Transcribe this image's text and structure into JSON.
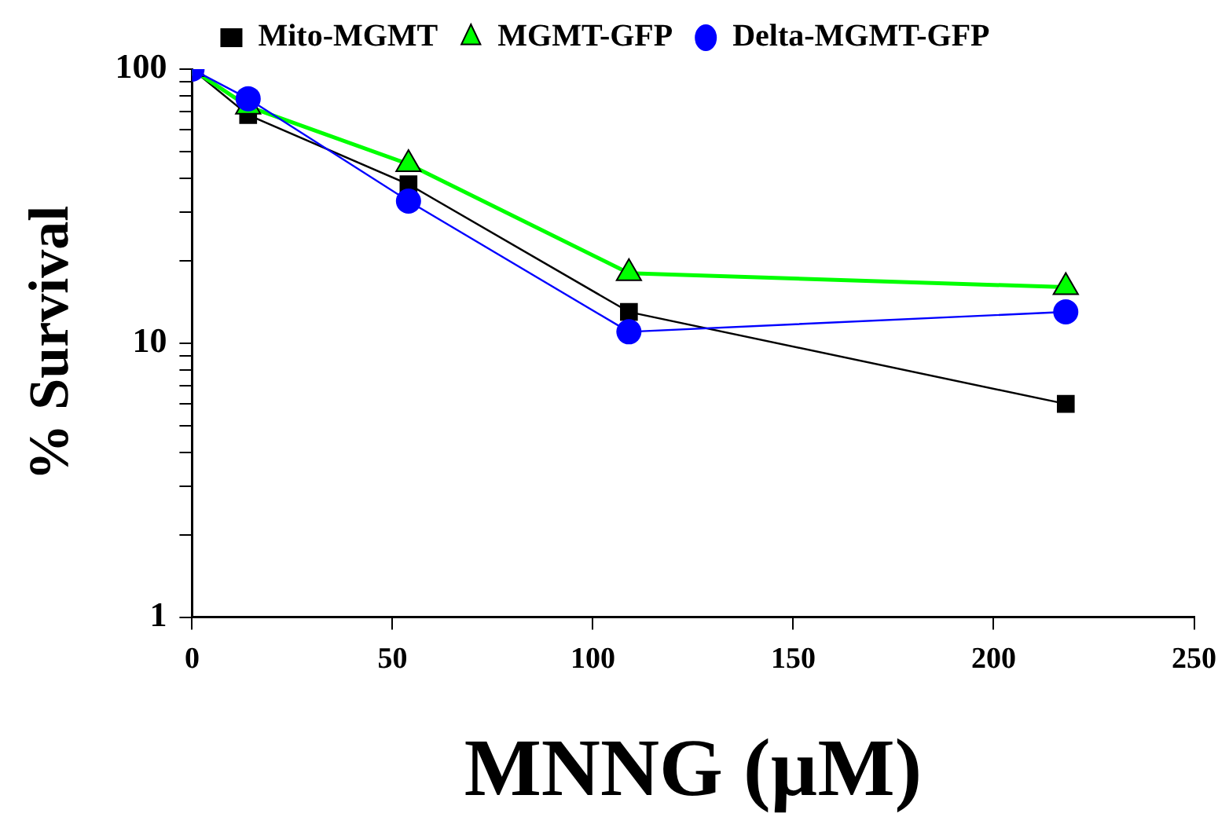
{
  "chart_data": {
    "type": "line",
    "xlabel": "MNNG (µM)",
    "ylabel": "% Survival",
    "x": [
      0,
      14,
      54,
      109,
      218
    ],
    "series": [
      {
        "name": "Mito-MGMT",
        "color": "#000000",
        "marker": "square",
        "values": [
          100,
          68,
          38,
          13,
          6
        ]
      },
      {
        "name": "MGMT-GFP",
        "color": "#00ff00",
        "marker": "triangle",
        "values": [
          100,
          73,
          45,
          18,
          16
        ]
      },
      {
        "name": "Delta-MGMT-GFP",
        "color": "#0000ff",
        "marker": "circle",
        "values": [
          100,
          78,
          33,
          11,
          13
        ]
      }
    ],
    "log": "y",
    "xlim": [
      0,
      250
    ],
    "xticks": [
      0,
      50,
      100,
      150,
      200,
      250
    ],
    "ylim": [
      1,
      100
    ],
    "yticks": [
      1,
      {
        "value": 2,
        "label": null
      },
      {
        "value": 3,
        "label": null
      },
      {
        "value": 4,
        "label": null
      },
      {
        "value": 5,
        "label": null
      },
      {
        "value": 6,
        "label": null
      },
      {
        "value": 7,
        "label": null
      },
      {
        "value": 8,
        "label": null
      },
      {
        "value": 9,
        "label": null
      },
      10,
      {
        "value": 20,
        "label": null
      },
      {
        "value": 30,
        "label": null
      },
      {
        "value": 40,
        "label": null
      },
      {
        "value": 50,
        "label": null
      },
      {
        "value": 60,
        "label": null
      },
      {
        "value": 70,
        "label": null
      },
      {
        "value": 80,
        "label": null
      },
      {
        "value": 90,
        "label": null
      },
      100
    ],
    "grid": false,
    "legend": "top",
    "line_style": "solid"
  }
}
